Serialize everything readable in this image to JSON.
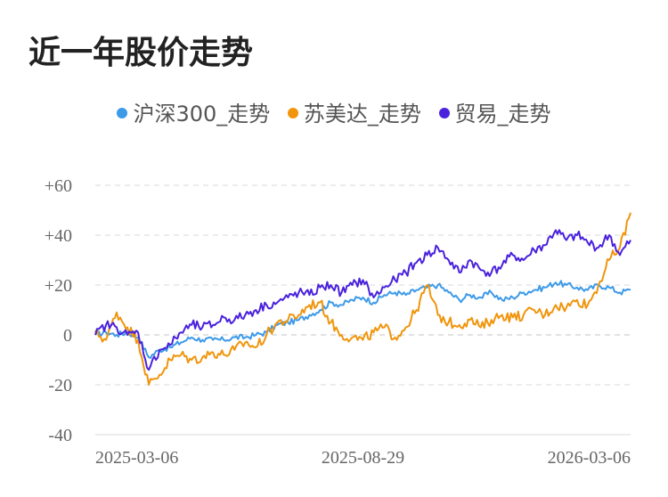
{
  "title": "近一年股价走势",
  "colors": {
    "hs300": "#3d9ae8",
    "smd": "#f0950c",
    "trade": "#4a22dd",
    "grid": "#e6e6e6",
    "zero": "#d9d9d9"
  },
  "chart_data": {
    "type": "line",
    "title": "近一年股价走势",
    "xlabel": "",
    "ylabel": "",
    "ylim": [
      -40,
      60
    ],
    "yticks": [
      60,
      40,
      20,
      0,
      -20,
      -40
    ],
    "ytick_labels": [
      "+60",
      "+40",
      "+20",
      "0",
      "-20",
      "-40"
    ],
    "xtick_labels": [
      "2025-03-06",
      "2025-08-29",
      "2026-03-06"
    ],
    "x": [
      0,
      2,
      4,
      6,
      8,
      10,
      12,
      14,
      16,
      18,
      20,
      22,
      24,
      26,
      28,
      30,
      32,
      34,
      36,
      38,
      40,
      42,
      44,
      46,
      48,
      50,
      52,
      54,
      56,
      58,
      60,
      62,
      64,
      66,
      68,
      70,
      72,
      74,
      76,
      78,
      80,
      82,
      84,
      86,
      88,
      90,
      92,
      94,
      96,
      98,
      100
    ],
    "legend": [
      "沪深300_走势",
      "苏美达_走势",
      "贸易_走势"
    ],
    "series": [
      {
        "name": "沪深300_走势",
        "color": "#3d9ae8",
        "values": [
          0,
          1,
          0,
          1,
          -1,
          -9,
          -6,
          -5,
          -3,
          -1,
          -2,
          -2,
          -2,
          -1,
          -1,
          0,
          1,
          4,
          5,
          6,
          8,
          10,
          13,
          12,
          14,
          15,
          13,
          16,
          17,
          16,
          18,
          19,
          20,
          17,
          14,
          16,
          15,
          17,
          14,
          15,
          17,
          18,
          19,
          21,
          20,
          19,
          18,
          20,
          19,
          17,
          18
        ]
      },
      {
        "name": "苏美达_走势",
        "color": "#f0950c",
        "values": [
          1,
          -2,
          9,
          3,
          -2,
          -20,
          -16,
          -10,
          -8,
          -10,
          -9,
          -7,
          -8,
          -6,
          -3,
          -5,
          0,
          5,
          6,
          8,
          12,
          13,
          5,
          0,
          -1,
          -2,
          1,
          3,
          -1,
          3,
          10,
          20,
          8,
          5,
          4,
          6,
          3,
          6,
          8,
          7,
          8,
          10,
          8,
          12,
          11,
          14,
          12,
          20,
          30,
          35,
          49
        ]
      },
      {
        "name": "贸易_走势",
        "color": "#4a22dd",
        "values": [
          0,
          4,
          3,
          0,
          1,
          -14,
          -6,
          -4,
          1,
          4,
          3,
          4,
          7,
          6,
          8,
          10,
          12,
          13,
          15,
          17,
          16,
          19,
          20,
          17,
          20,
          22,
          15,
          19,
          22,
          25,
          29,
          32,
          35,
          30,
          25,
          30,
          26,
          25,
          28,
          32,
          30,
          34,
          36,
          42,
          38,
          40,
          37,
          35,
          40,
          32,
          38
        ]
      }
    ]
  }
}
